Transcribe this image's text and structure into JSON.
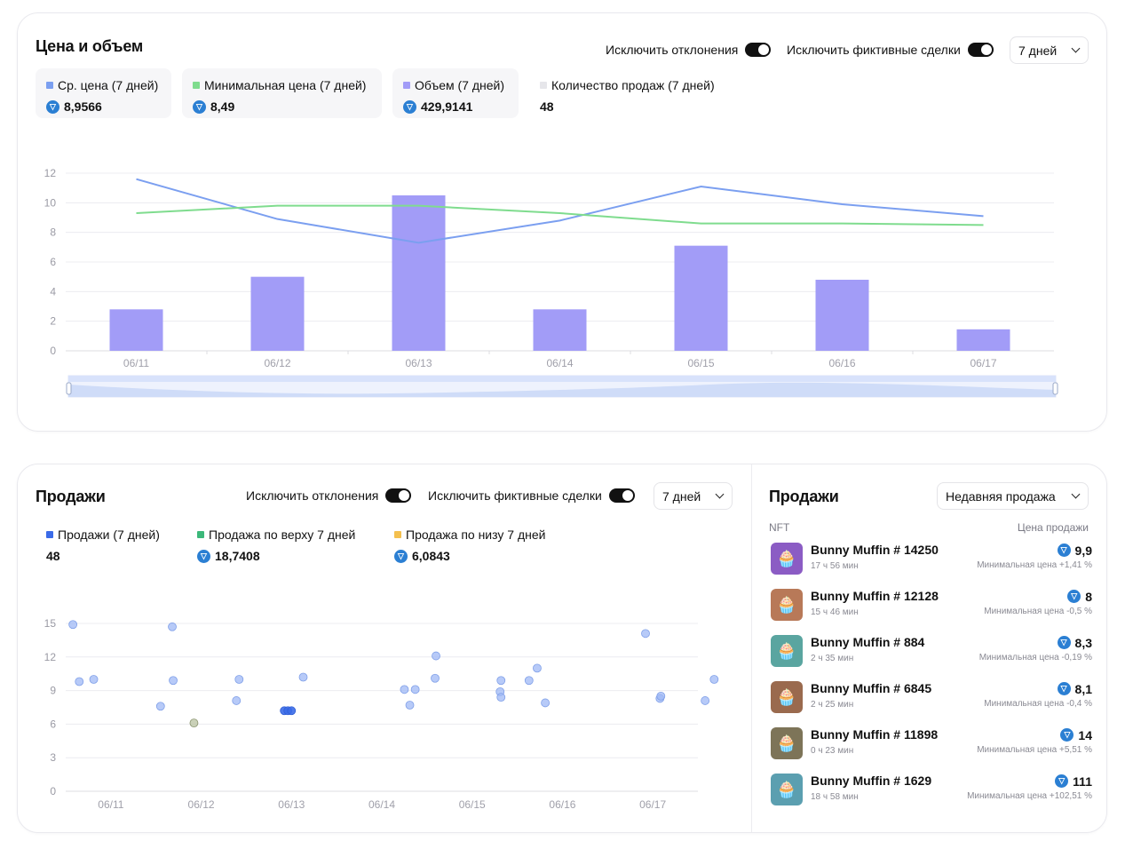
{
  "price_volume": {
    "title": "Цена и объем",
    "toggle_outliers": "Исключить отклонения",
    "toggle_fake": "Исключить фиктивные сделки",
    "range": "7 дней",
    "stats": [
      {
        "label": "Ср. цена (7 дней)",
        "value": "8,9566",
        "color": "#7b9ff0",
        "ton": true
      },
      {
        "label": "Минимальная цена (7 дней)",
        "value": "8,49",
        "color": "#7fdc8e",
        "ton": true
      },
      {
        "label": "Объем (7 дней)",
        "value": "429,9141",
        "color": "#a29cf7",
        "ton": true
      },
      {
        "label": "Количество продаж (7 дней)",
        "value": "48",
        "color": "#e6e6ea",
        "ton": false
      }
    ]
  },
  "sales": {
    "title": "Продажи",
    "toggle_outliers": "Исключить отклонения",
    "toggle_fake": "Исключить фиктивные сделки",
    "range": "7 дней",
    "stats": [
      {
        "label": "Продажи (7 дней)",
        "value": "48",
        "color": "#3b6be8",
        "ton": false
      },
      {
        "label": "Продажа по верху 7 дней",
        "value": "18,7408",
        "color": "#3cb87a",
        "ton": true
      },
      {
        "label": "Продажа по низу 7 дней",
        "value": "6,0843",
        "color": "#f4c04e",
        "ton": true
      }
    ]
  },
  "recent": {
    "title": "Продажи",
    "sort": "Недавняя продажа",
    "col_nft": "NFT",
    "col_price": "Цена продажи",
    "items": [
      {
        "name": "Bunny Muffin  # 14250",
        "time": "17 ч 56 мин",
        "price": "9,9",
        "note": "Минимальная цена +1,41 %",
        "bg": "#8b5cc4"
      },
      {
        "name": "Bunny Muffin  # 12128",
        "time": "15 ч 46 мин",
        "price": "8",
        "note": "Минимальная цена -0,5 %",
        "bg": "#b87958"
      },
      {
        "name": "Bunny Muffin  # 884",
        "time": "2 ч 35 мин",
        "price": "8,3",
        "note": "Минимальная цена -0,19 %",
        "bg": "#5aa5a0"
      },
      {
        "name": "Bunny Muffin  # 6845",
        "time": "2 ч 25 мин",
        "price": "8,1",
        "note": "Минимальная цена -0,4 %",
        "bg": "#9a6a4e"
      },
      {
        "name": "Bunny Muffin  # 11898",
        "time": "0 ч 23 мин",
        "price": "14",
        "note": "Минимальная цена +5,51 %",
        "bg": "#7d7458"
      },
      {
        "name": "Bunny Muffin  # 1629",
        "time": "18 ч 58 мин",
        "price": "111",
        "note": "Минимальная цена +102,51 %",
        "bg": "#5b9fb0"
      }
    ]
  },
  "chart_data": [
    {
      "type": "bar",
      "categories": [
        "06/11",
        "06/12",
        "06/13",
        "06/14",
        "06/15",
        "06/16",
        "06/17"
      ],
      "ylim": [
        0,
        12
      ],
      "yticks": [
        "0",
        "2",
        "4",
        "6",
        "8",
        "10",
        "12"
      ],
      "series": [
        {
          "name": "Объем (7 дней)",
          "type": "bar",
          "color": "#a29cf7",
          "values": [
            2.8,
            5.0,
            10.5,
            2.8,
            7.1,
            4.8,
            1.45
          ]
        },
        {
          "name": "Ср. цена (7 дней)",
          "type": "line",
          "color": "#7b9ff0",
          "values": [
            11.6,
            8.9,
            7.3,
            8.8,
            11.1,
            9.9,
            9.1
          ]
        },
        {
          "name": "Минимальная цена (7 дней)",
          "type": "line",
          "color": "#7fdc8e",
          "values": [
            9.3,
            9.8,
            9.8,
            9.3,
            8.6,
            8.6,
            8.5
          ]
        }
      ],
      "grid": true,
      "zoom_slider": true
    },
    {
      "type": "scatter",
      "categories": [
        "06/11",
        "06/12",
        "06/13",
        "06/14",
        "06/15",
        "06/16",
        "06/17"
      ],
      "xlim": [
        10.5,
        17.5
      ],
      "ylim": [
        0,
        15
      ],
      "yticks": [
        "0",
        "3",
        "6",
        "9",
        "12",
        "15"
      ],
      "grid": true,
      "series": [
        {
          "name": "Продажи (7 дней)",
          "color": "#9fb8f5",
          "points": [
            [
              10.58,
              14.9
            ],
            [
              10.65,
              9.8
            ],
            [
              10.81,
              10.0
            ],
            [
              11.55,
              7.6
            ],
            [
              11.68,
              14.7
            ],
            [
              11.69,
              9.9
            ],
            [
              12.39,
              8.1
            ],
            [
              12.42,
              10.0
            ],
            [
              12.92,
              7.2
            ],
            [
              12.96,
              7.2
            ],
            [
              13.0,
              7.2
            ],
            [
              13.13,
              10.2
            ],
            [
              14.25,
              9.1
            ],
            [
              14.31,
              7.7
            ],
            [
              14.37,
              9.1
            ],
            [
              14.59,
              10.1
            ],
            [
              14.6,
              12.1
            ],
            [
              15.32,
              9.9
            ],
            [
              15.31,
              8.9
            ],
            [
              15.32,
              8.4
            ],
            [
              15.63,
              9.9
            ],
            [
              15.72,
              11.0
            ],
            [
              15.81,
              7.9
            ],
            [
              16.92,
              14.1
            ],
            [
              17.08,
              8.3
            ],
            [
              17.09,
              8.5
            ],
            [
              17.58,
              8.1
            ],
            [
              17.68,
              10.0
            ]
          ]
        },
        {
          "name": "Продажа по низу 7 дней",
          "color": "#b8c2a0",
          "points": [
            [
              11.92,
              6.1
            ]
          ]
        }
      ]
    }
  ]
}
